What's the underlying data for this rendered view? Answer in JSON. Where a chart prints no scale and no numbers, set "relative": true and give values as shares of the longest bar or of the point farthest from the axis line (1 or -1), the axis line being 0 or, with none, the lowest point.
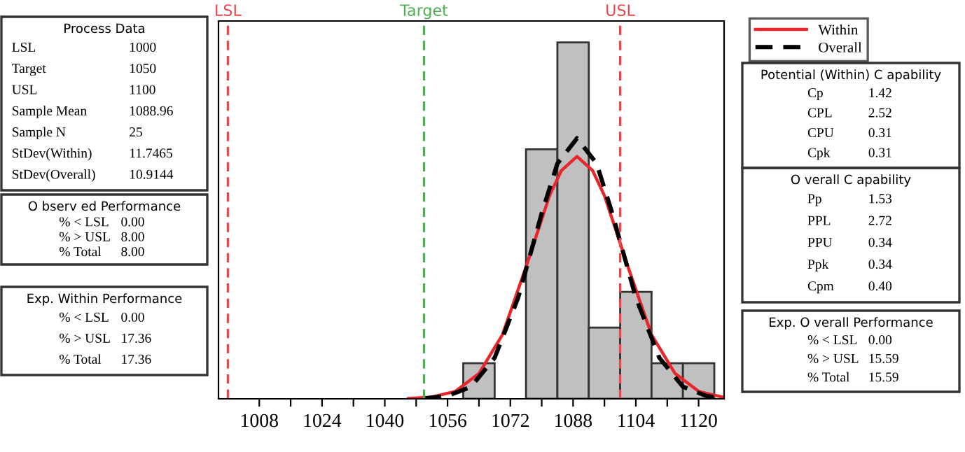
{
  "chart_data": [
    {
      "type": "other",
      "title": "Process Data",
      "annotations": [
        "LSL",
        "1000",
        "Target",
        "1050",
        "USL",
        "1100",
        "Sample Mean",
        "1088.96",
        "Sample N",
        "25",
        "StDev(Within)",
        "11.7465",
        "StDev(Overall)",
        "10.9144"
      ]
    },
    {
      "type": "other",
      "title": "O bserv ed Performance",
      "annotations": [
        "% < LSL",
        "0.00",
        "% > USL",
        "8.00",
        "% Total",
        "8.00"
      ]
    },
    {
      "type": "other",
      "title": "Exp. Within Performance",
      "annotations": [
        "% < LSL",
        "0.00",
        "% > USL",
        "17.36",
        "% Total",
        "17.36"
      ]
    },
    {
      "type": "histogram",
      "relative": true,
      "color": "#c0c0c0",
      "bins": [
        1060,
        1068,
        1076,
        1084,
        1092,
        1100,
        1108,
        1116,
        1124
      ],
      "values": [
        0.1,
        0,
        0.7,
        1,
        0.2,
        0.3,
        0.1,
        0.1
      ],
      "xlim": [
        997.6,
        1126.5
      ],
      "xticks": [
        1008,
        {
          "value": 1016,
          "label": null
        },
        1024,
        {
          "value": 1032,
          "label": null
        },
        1040,
        {
          "value": 1048,
          "label": null
        },
        1056,
        {
          "value": 1064,
          "label": null
        },
        1072,
        {
          "value": 1080,
          "label": null
        },
        1088,
        {
          "value": 1096,
          "label": null
        },
        1104,
        {
          "value": 1112,
          "label": null
        },
        1120
      ],
      "series": [
        {
          "name": "Within",
          "type": "line",
          "color": "#e8262b",
          "line_style": "solid",
          "x": [
            1046,
            1052,
            1058,
            1064,
            1070,
            1076,
            1079,
            1082,
            1085,
            1089,
            1093,
            1096,
            1099,
            1102,
            1108,
            1114,
            1120,
            1126
          ],
          "values": [
            0.001,
            0.005,
            0.021,
            0.071,
            0.18,
            0.37,
            0.47,
            0.57,
            0.64,
            0.68,
            0.64,
            0.57,
            0.47,
            0.37,
            0.18,
            0.071,
            0.021,
            0.005
          ]
        },
        {
          "name": "Overall",
          "type": "line",
          "color": "#000000",
          "line_style": "dashed",
          "x": [
            1050,
            1056,
            1062,
            1068,
            1074,
            1080,
            1084,
            1089,
            1094,
            1098,
            1104,
            1110,
            1116,
            1122,
            1126
          ],
          "values": [
            0.001,
            0.008,
            0.034,
            0.115,
            0.284,
            0.52,
            0.66,
            0.731,
            0.66,
            0.52,
            0.284,
            0.115,
            0.034,
            0.008,
            0.002
          ]
        }
      ],
      "ref_lines": [
        {
          "axis": "x",
          "value": 1000,
          "label": "LSL",
          "color": "#e8474c",
          "line_style": "dashed"
        },
        {
          "axis": "x",
          "value": 1050,
          "label": "Target",
          "color": "#4caf50",
          "line_style": "dashed"
        },
        {
          "axis": "x",
          "value": 1100,
          "label": "USL",
          "color": "#e8474c",
          "line_style": "dashed"
        }
      ],
      "legend": "right",
      "grid": false
    },
    {
      "type": "other",
      "title": "Potential (Within) C apability",
      "annotations": [
        "Cp",
        "1.42",
        "CPL",
        "2.52",
        "CPU",
        "0.31",
        "Cpk",
        "0.31"
      ]
    },
    {
      "type": "other",
      "title": "O verall C apability",
      "annotations": [
        "Pp",
        "1.53",
        "PPL",
        "2.72",
        "PPU",
        "0.34",
        "Ppk",
        "0.34",
        "Cpm",
        "0.40"
      ]
    },
    {
      "type": "other",
      "title": "Exp. O verall Performance",
      "annotations": [
        "% < LSL",
        "0.00",
        "% > USL",
        "15.59",
        "% Total",
        "15.59"
      ]
    }
  ]
}
